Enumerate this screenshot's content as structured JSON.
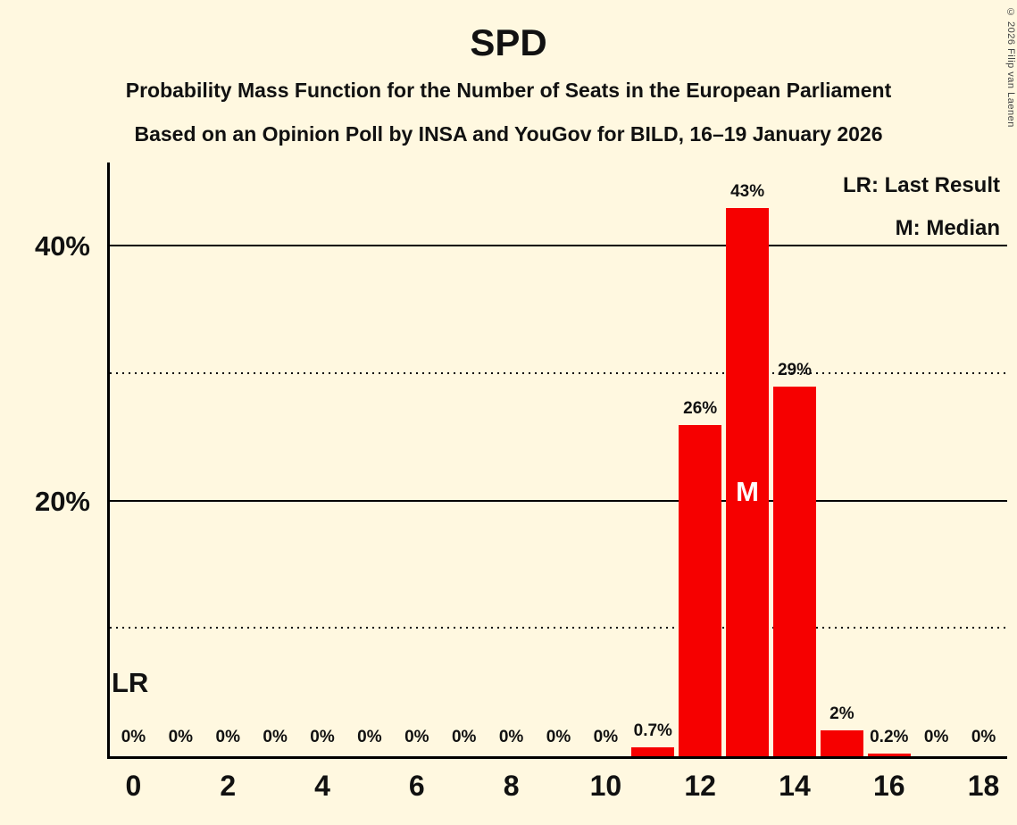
{
  "page": {
    "background": "#FFF8E0",
    "copyright": "© 2026 Filip van Laenen"
  },
  "header": {
    "title": "SPD",
    "subtitle1": "Probability Mass Function for the Number of Seats in the European Parliament",
    "subtitle2": "Based on an Opinion Poll by INSA and YouGov for BILD, 16–19 January 2026"
  },
  "legend": {
    "lr": "LR: Last Result",
    "m": "M: Median"
  },
  "chart_data": {
    "type": "bar",
    "title": "SPD",
    "categories": [
      0,
      1,
      2,
      3,
      4,
      5,
      6,
      7,
      8,
      9,
      10,
      11,
      12,
      13,
      14,
      15,
      16,
      17,
      18
    ],
    "values": [
      0,
      0,
      0,
      0,
      0,
      0,
      0,
      0,
      0,
      0,
      0,
      0.7,
      26,
      43,
      29,
      2,
      0.2,
      0,
      0
    ],
    "bar_labels": [
      "0%",
      "0%",
      "0%",
      "0%",
      "0%",
      "0%",
      "0%",
      "0%",
      "0%",
      "0%",
      "0%",
      "0.7%",
      "26%",
      "43%",
      "29%",
      "2%",
      "0.2%",
      "0%",
      "0%"
    ],
    "bar_color": "#F60000",
    "median_seat": 13,
    "median_label": "M",
    "last_result_label": "LR",
    "ylim": [
      0,
      46.6
    ],
    "grid": true,
    "legend_position": "top-right",
    "y_ticks": [
      {
        "value": 20,
        "label": "20%"
      },
      {
        "value": 40,
        "label": "40%"
      }
    ],
    "solid_gridlines": [
      20,
      40
    ],
    "dotted_gridlines": [
      10,
      30
    ],
    "x_ticks": [
      {
        "seat": 0,
        "label": "0"
      },
      {
        "seat": 2,
        "label": "2"
      },
      {
        "seat": 4,
        "label": "4"
      },
      {
        "seat": 6,
        "label": "6"
      },
      {
        "seat": 8,
        "label": "8"
      },
      {
        "seat": 10,
        "label": "10"
      },
      {
        "seat": 12,
        "label": "12"
      },
      {
        "seat": 14,
        "label": "14"
      },
      {
        "seat": 16,
        "label": "16"
      },
      {
        "seat": 18,
        "label": "18"
      }
    ]
  }
}
